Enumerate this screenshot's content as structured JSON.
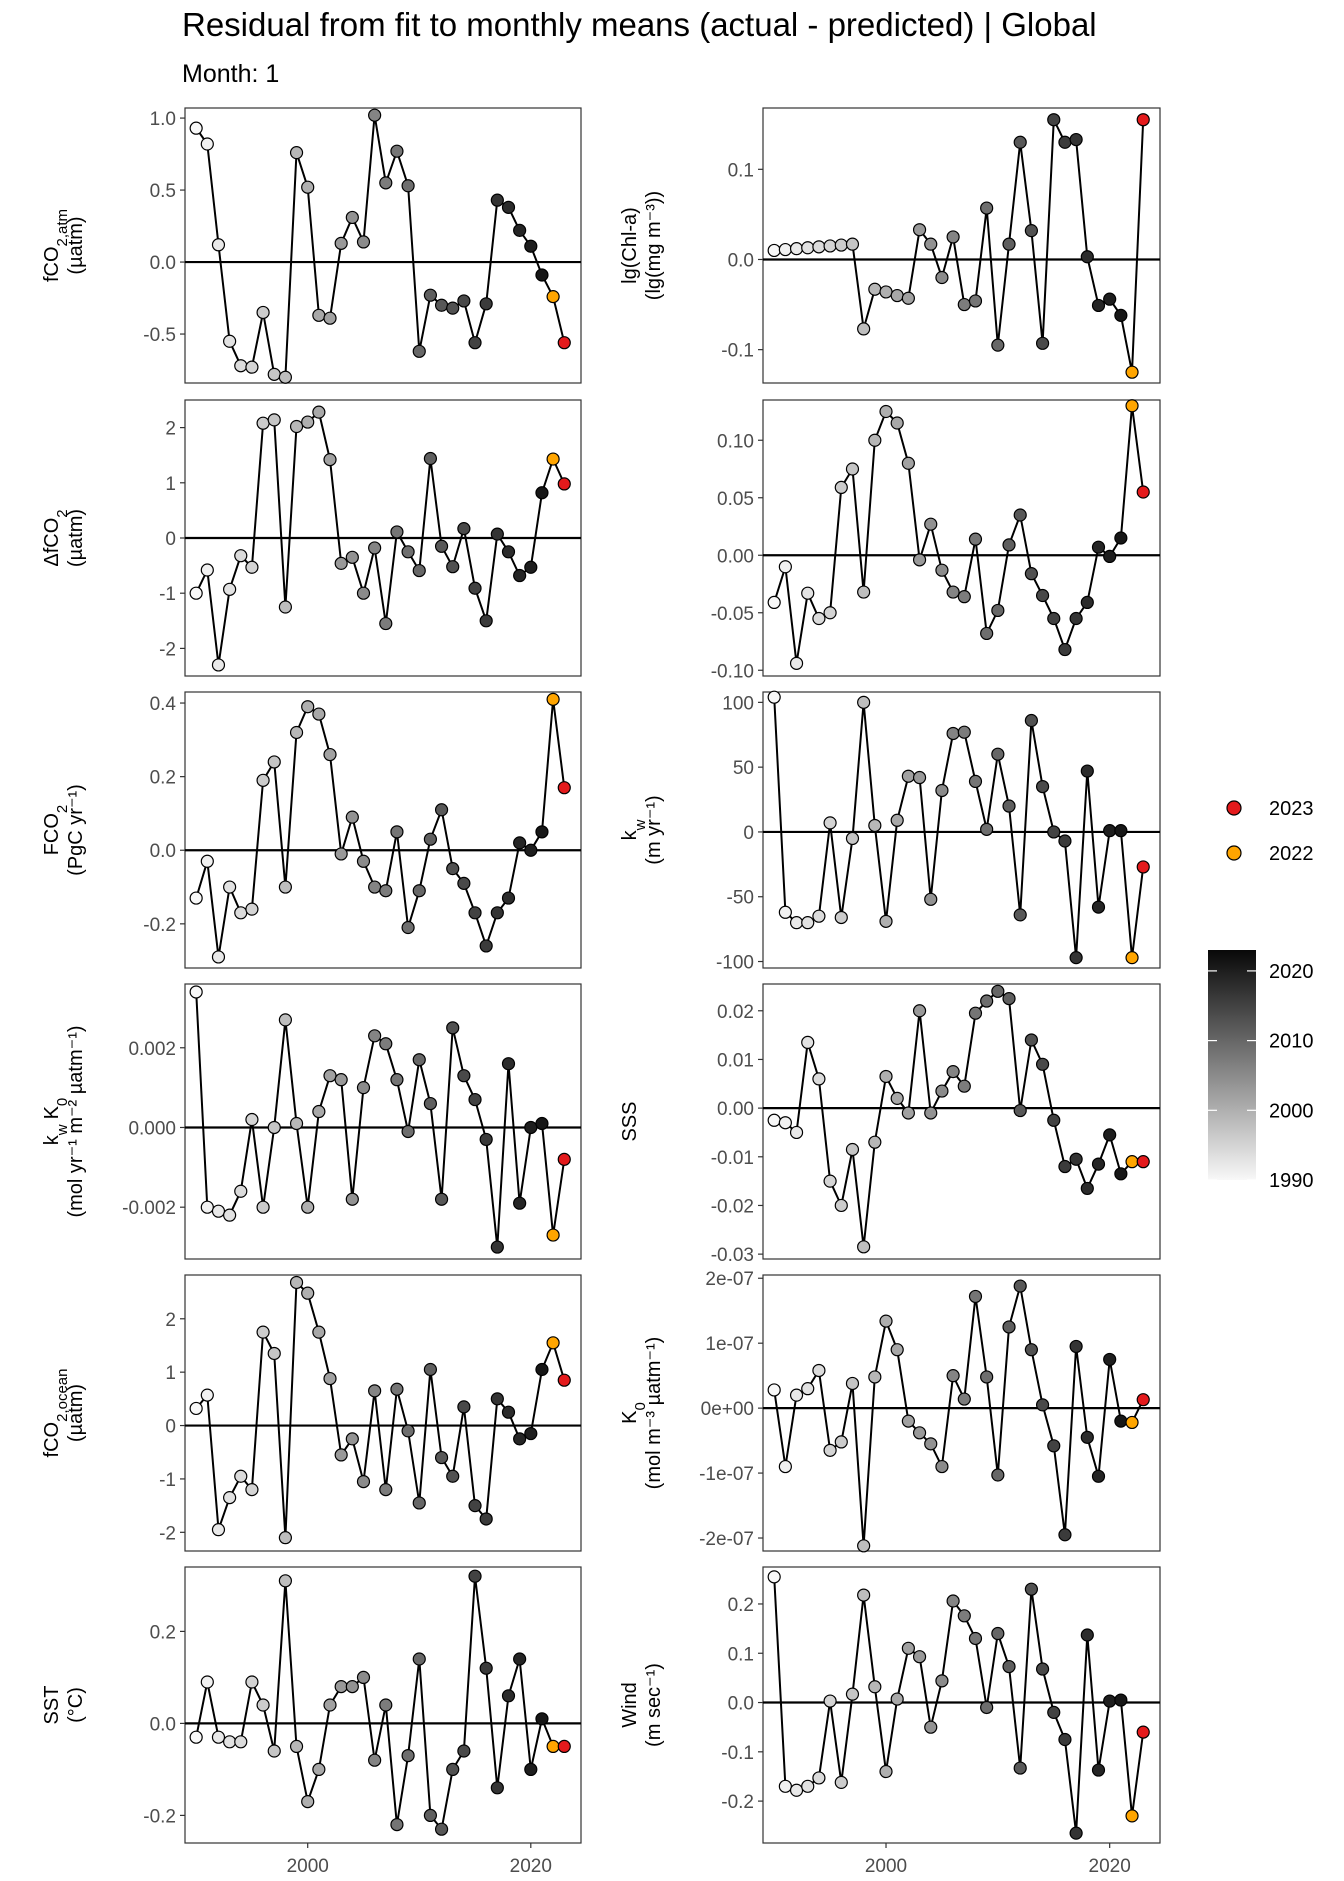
{
  "title": "Residual from fit to monthly means (actual - predicted) | Global",
  "subtitle": "Month: 1",
  "chart_data": {
    "type": "line",
    "layout": "facet-grid-6x2",
    "x": [
      1990,
      1991,
      1992,
      1993,
      1994,
      1995,
      1996,
      1997,
      1998,
      1999,
      2000,
      2001,
      2002,
      2003,
      2004,
      2005,
      2006,
      2007,
      2008,
      2009,
      2010,
      2011,
      2012,
      2013,
      2014,
      2015,
      2016,
      2017,
      2018,
      2019,
      2020,
      2021,
      2022,
      2023
    ],
    "xlim": [
      1989,
      2024.5
    ],
    "x_ticks": [
      2000,
      2020
    ],
    "x_tick_labels": [
      "2000",
      "2020"
    ],
    "reference_line_y": 0,
    "highlight": {
      "2023": "#e41a1c",
      "2022": "#ffa500"
    },
    "legend": [
      {
        "label": "2023",
        "color": "#e41a1c"
      },
      {
        "label": "2022",
        "color": "#ffa500"
      }
    ],
    "colorbar": {
      "labels": [
        "2020",
        "2010",
        "2000",
        "1990"
      ],
      "values": [
        2020,
        2010,
        2000,
        1990
      ],
      "range": [
        1990,
        2023
      ]
    },
    "panels": [
      {
        "id": "fco2-atm",
        "ylabel_main": "fCO",
        "ylabel_sub": "2,atm",
        "ylabel_unit": "(µatm)",
        "ylim": [
          -0.84,
          1.07
        ],
        "yticks": [
          -0.5,
          0,
          0.5,
          1.0
        ],
        "yticklabels": [
          "-0.5",
          "0.0",
          "0.5",
          "1.0"
        ],
        "values": [
          0.93,
          0.82,
          0.12,
          -0.55,
          -0.72,
          -0.73,
          -0.35,
          -0.78,
          -0.8,
          0.76,
          0.52,
          -0.37,
          -0.39,
          0.13,
          0.31,
          0.14,
          1.02,
          0.55,
          0.77,
          0.53,
          -0.62,
          -0.23,
          -0.3,
          -0.32,
          -0.27,
          -0.56,
          -0.29,
          0.43,
          0.38,
          0.22,
          0.11,
          -0.09,
          -0.24,
          -0.56
        ]
      },
      {
        "id": "chl-a",
        "ylabel_main": "lg(Chl-a)",
        "ylabel_sub": "",
        "ylabel_unit": "(lg(mg m⁻³))",
        "ylim": [
          -0.137,
          0.168
        ],
        "yticks": [
          -0.1,
          0,
          0.1
        ],
        "yticklabels": [
          "-0.1",
          "0.0",
          "0.1"
        ],
        "values": [
          0.01,
          0.011,
          0.012,
          0.013,
          0.014,
          0.015,
          0.016,
          0.017,
          -0.077,
          -0.033,
          -0.036,
          -0.04,
          -0.043,
          0.033,
          0.017,
          -0.02,
          0.025,
          -0.05,
          -0.046,
          0.057,
          -0.095,
          0.017,
          0.13,
          0.032,
          -0.093,
          0.155,
          0.13,
          0.133,
          0.003,
          -0.051,
          -0.044,
          -0.062,
          -0.125,
          0.155
        ]
      },
      {
        "id": "delta-fco2",
        "ylabel_main": "ΔfCO",
        "ylabel_sub": "2",
        "ylabel_unit": "(µatm)",
        "ylim": [
          -2.5,
          2.5
        ],
        "yticks": [
          -2,
          -1,
          0,
          1,
          2
        ],
        "yticklabels": [
          "-2",
          "-1",
          "0",
          "1",
          "2"
        ],
        "values": [
          -1.0,
          -0.58,
          -2.3,
          -0.93,
          -0.32,
          -0.53,
          2.08,
          2.14,
          -1.25,
          2.02,
          2.1,
          2.28,
          1.42,
          -0.46,
          -0.35,
          -1.0,
          -0.18,
          -1.55,
          0.11,
          -0.25,
          -0.59,
          1.44,
          -0.15,
          -0.52,
          0.17,
          -0.91,
          -1.5,
          0.07,
          -0.25,
          -0.68,
          -0.53,
          0.82,
          1.43,
          0.98
        ]
      },
      {
        "id": "flux-resid-alt",
        "ylabel_main": "",
        "ylabel_sub": "",
        "ylabel_unit": "",
        "ylim": [
          -0.105,
          0.135
        ],
        "yticks": [
          -0.1,
          -0.05,
          0,
          0.05,
          0.1
        ],
        "yticklabels": [
          "-0.10",
          "-0.05",
          "0.00",
          "0.05",
          "0.10"
        ],
        "values": [
          -0.041,
          -0.01,
          -0.094,
          -0.033,
          -0.055,
          -0.05,
          0.059,
          0.075,
          -0.032,
          0.1,
          0.125,
          0.115,
          0.08,
          -0.004,
          0.027,
          -0.013,
          -0.032,
          -0.036,
          0.014,
          -0.068,
          -0.048,
          0.009,
          0.035,
          -0.016,
          -0.035,
          -0.055,
          -0.082,
          -0.055,
          -0.041,
          0.007,
          -0.001,
          0.015,
          0.13,
          0.055
        ]
      },
      {
        "id": "fco2-flux",
        "ylabel_main": "FCO",
        "ylabel_sub": "2",
        "ylabel_unit": "(PgC yr⁻¹)",
        "ylim": [
          -0.32,
          0.43
        ],
        "yticks": [
          -0.2,
          0,
          0.2,
          0.4
        ],
        "yticklabels": [
          "-0.2",
          "0.0",
          "0.2",
          "0.4"
        ],
        "values": [
          -0.13,
          -0.03,
          -0.29,
          -0.1,
          -0.17,
          -0.16,
          0.19,
          0.24,
          -0.1,
          0.32,
          0.39,
          0.37,
          0.26,
          -0.01,
          0.09,
          -0.03,
          -0.1,
          -0.11,
          0.05,
          -0.21,
          -0.11,
          0.03,
          0.11,
          -0.05,
          -0.09,
          -0.17,
          -0.26,
          -0.17,
          -0.13,
          0.02,
          0.0,
          0.05,
          0.41,
          0.17
        ]
      },
      {
        "id": "kw",
        "ylabel_main": "k",
        "ylabel_sub": "w",
        "ylabel_unit": "(m yr⁻¹)",
        "ylim": [
          -105,
          108
        ],
        "yticks": [
          -100,
          -50,
          0,
          50,
          100
        ],
        "yticklabels": [
          "-100",
          "-50",
          "0",
          "50",
          "100"
        ],
        "values": [
          104,
          -62,
          -70,
          -70,
          -65,
          7,
          -66,
          -5,
          100,
          5,
          -69,
          9,
          43,
          42,
          -52,
          32,
          76,
          77,
          39,
          2,
          60,
          20,
          -64,
          86,
          35,
          0,
          -7,
          -97,
          47,
          -58,
          1,
          1,
          -97,
          -27
        ]
      },
      {
        "id": "kw-k0",
        "ylabel_main": "k",
        "ylabel_sub": "w",
        "ylabel_unit": "(mol yr⁻¹ m⁻² µatm⁻¹)",
        "ylim": [
          -0.0033,
          0.0036
        ],
        "yticks": [
          -0.002,
          0,
          0.002
        ],
        "yticklabels": [
          "-0.002",
          "0.000",
          "0.002"
        ],
        "values": [
          0.0034,
          -0.002,
          -0.0021,
          -0.0022,
          -0.0016,
          0.0002,
          -0.002,
          0.0,
          0.0027,
          0.0001,
          -0.002,
          0.0004,
          0.0013,
          0.0012,
          -0.0018,
          0.001,
          0.0023,
          0.0021,
          0.0012,
          -0.0001,
          0.0017,
          0.0006,
          -0.0018,
          0.0025,
          0.0013,
          0.0007,
          -0.0003,
          -0.003,
          0.0016,
          -0.0019,
          -0.0,
          0.0001,
          -0.0027,
          -0.0008
        ]
      },
      {
        "id": "sss",
        "ylabel_main": "SSS",
        "ylabel_sub": "",
        "ylabel_unit": "",
        "ylim": [
          -0.031,
          0.0255
        ],
        "yticks": [
          -0.03,
          -0.02,
          -0.01,
          0,
          0.01,
          0.02
        ],
        "yticklabels": [
          "-0.03",
          "-0.02",
          "-0.01",
          "0.00",
          "0.01",
          "0.02"
        ],
        "values": [
          -0.0025,
          -0.003,
          -0.005,
          0.0135,
          0.006,
          -0.015,
          -0.02,
          -0.0085,
          -0.0285,
          -0.007,
          0.0065,
          0.002,
          -0.001,
          0.02,
          -0.001,
          0.0035,
          0.0075,
          0.0045,
          0.0195,
          0.022,
          0.024,
          0.0225,
          -0.0005,
          0.014,
          0.009,
          -0.0025,
          -0.012,
          -0.0105,
          -0.0165,
          -0.0115,
          -0.0055,
          -0.0135,
          -0.011,
          -0.011
        ]
      },
      {
        "id": "fco2-ocean",
        "ylabel_main": "fCO",
        "ylabel_sub": "2,ocean",
        "ylabel_unit": "(µatm)",
        "ylim": [
          -2.35,
          2.82
        ],
        "yticks": [
          -2,
          -1,
          0,
          1,
          2
        ],
        "yticklabels": [
          "-2",
          "-1",
          "0",
          "1",
          "2"
        ],
        "values": [
          0.32,
          0.57,
          -1.95,
          -1.35,
          -0.95,
          -1.2,
          1.75,
          1.35,
          -2.1,
          2.68,
          2.48,
          1.75,
          0.88,
          -0.55,
          -0.25,
          -1.05,
          0.65,
          -1.2,
          0.68,
          -0.1,
          -1.45,
          1.05,
          -0.6,
          -0.95,
          0.35,
          -1.5,
          -1.75,
          0.5,
          0.25,
          -0.25,
          -0.15,
          1.05,
          1.55,
          0.85
        ]
      },
      {
        "id": "k0",
        "ylabel_main": "K",
        "ylabel_sub": "0",
        "ylabel_unit": "(mol m⁻³ µatm⁻¹)",
        "ylim": [
          -2.2e-07,
          2.05e-07
        ],
        "yticks": [
          -2e-07,
          -1e-07,
          0,
          1e-07,
          2e-07
        ],
        "yticklabels": [
          "-2e-07",
          "-1e-07",
          "0e+00",
          "1e-07",
          "2e-07"
        ],
        "values": [
          2.8e-08,
          -9e-08,
          2e-08,
          3e-08,
          5.8e-08,
          -6.5e-08,
          -5.2e-08,
          3.8e-08,
          -2.12e-07,
          4.8e-08,
          1.34e-07,
          9e-08,
          -2e-08,
          -3.8e-08,
          -5.5e-08,
          -9e-08,
          5e-08,
          1.4e-08,
          1.72e-07,
          4.8e-08,
          -1.03e-07,
          1.25e-07,
          1.88e-07,
          9e-08,
          5e-09,
          -5.8e-08,
          -1.95e-07,
          9.5e-08,
          -4.5e-08,
          -1.05e-07,
          7.5e-08,
          -2e-08,
          -2.2e-08,
          1.3e-08
        ]
      },
      {
        "id": "sst",
        "ylabel_main": "SST",
        "ylabel_sub": "",
        "ylabel_unit": "(°C)",
        "ylim": [
          -0.26,
          0.34
        ],
        "yticks": [
          -0.2,
          0,
          0.2
        ],
        "yticklabels": [
          "-0.2",
          "0.0",
          "0.2"
        ],
        "values": [
          -0.03,
          0.09,
          -0.03,
          -0.04,
          -0.04,
          0.09,
          0.04,
          -0.06,
          0.31,
          -0.05,
          -0.17,
          -0.1,
          0.04,
          0.08,
          0.08,
          0.1,
          -0.08,
          0.04,
          -0.22,
          -0.07,
          0.14,
          -0.2,
          -0.23,
          -0.1,
          -0.06,
          0.32,
          0.12,
          -0.14,
          0.06,
          0.14,
          -0.1,
          0.01,
          -0.05,
          -0.05
        ]
      },
      {
        "id": "wind",
        "ylabel_main": "Wind",
        "ylabel_sub": "",
        "ylabel_unit": "(m sec⁻¹)",
        "ylim": [
          -0.285,
          0.275
        ],
        "yticks": [
          -0.2,
          -0.1,
          0,
          0.1,
          0.2
        ],
        "yticklabels": [
          "-0.2",
          "-0.1",
          "0.0",
          "0.1",
          "0.2"
        ],
        "values": [
          0.255,
          -0.17,
          -0.178,
          -0.17,
          -0.153,
          0.003,
          -0.162,
          0.017,
          0.218,
          0.032,
          -0.14,
          0.007,
          0.11,
          0.093,
          -0.05,
          0.044,
          0.206,
          0.176,
          0.13,
          -0.01,
          0.14,
          0.073,
          -0.133,
          0.23,
          0.068,
          -0.02,
          -0.075,
          -0.265,
          0.137,
          -0.137,
          0.003,
          0.005,
          -0.23,
          -0.06
        ]
      }
    ]
  }
}
